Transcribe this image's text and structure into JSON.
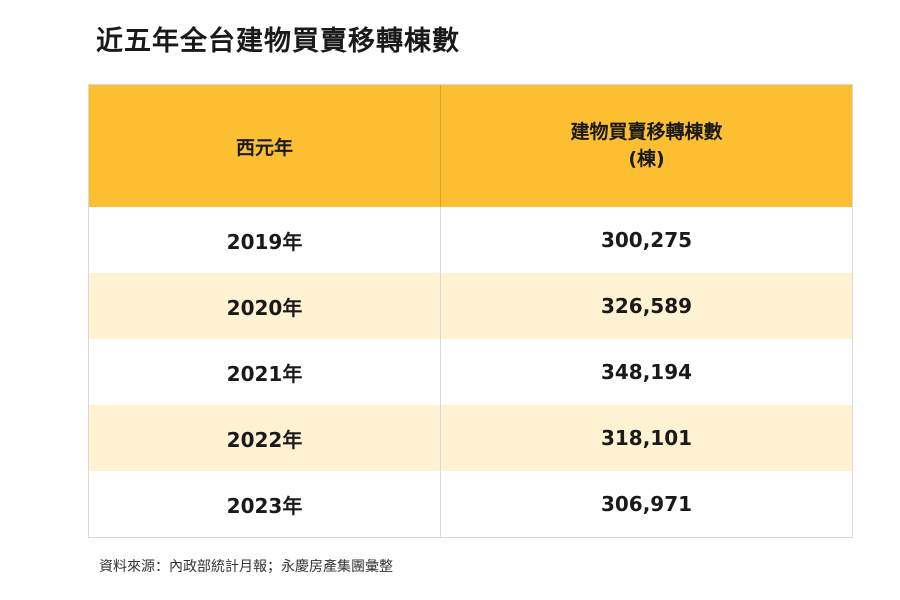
{
  "title": "近五年全台建物買賣移轉棟數",
  "table": {
    "headers": {
      "year": "西元年",
      "count_line1": "建物買賣移轉棟數",
      "count_line2": "(棟)"
    },
    "rows": [
      {
        "year": "2019年",
        "count": "300,275"
      },
      {
        "year": "2020年",
        "count": "326,589"
      },
      {
        "year": "2021年",
        "count": "348,194"
      },
      {
        "year": "2022年",
        "count": "318,101"
      },
      {
        "year": "2023年",
        "count": "306,971"
      }
    ]
  },
  "source": "資料來源：內政部統計月報；永慶房產集團彙整",
  "colors": {
    "header_bg": "#fcbf32",
    "alt_row_bg": "#fef2d3"
  },
  "chart_data": {
    "type": "table",
    "title": "近五年全台建物買賣移轉棟數",
    "columns": [
      "西元年",
      "建物買賣移轉棟數 (棟)"
    ],
    "categories": [
      "2019年",
      "2020年",
      "2021年",
      "2022年",
      "2023年"
    ],
    "values": [
      300275,
      326589,
      348194,
      318101,
      306971
    ]
  }
}
